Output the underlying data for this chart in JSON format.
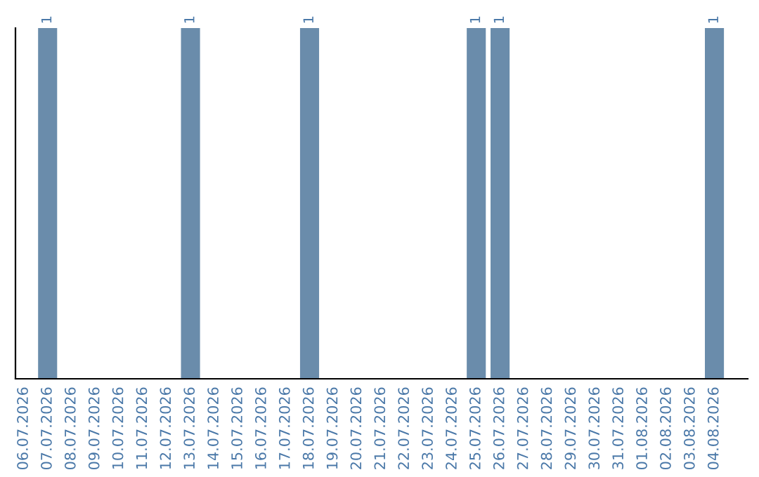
{
  "chart_data": {
    "type": "bar",
    "categories": [
      "06.07.2026",
      "07.07.2026",
      "08.07.2026",
      "09.07.2026",
      "10.07.2026",
      "11.07.2026",
      "12.07.2026",
      "13.07.2026",
      "14.07.2026",
      "15.07.2026",
      "16.07.2026",
      "17.07.2026",
      "18.07.2026",
      "19.07.2026",
      "20.07.2026",
      "21.07.2026",
      "22.07.2026",
      "23.07.2026",
      "24.07.2026",
      "25.07.2026",
      "26.07.2026",
      "27.07.2026",
      "28.07.2026",
      "29.07.2026",
      "30.07.2026",
      "31.07.2026",
      "01.08.2026",
      "02.08.2026",
      "03.08.2026",
      "04.08.2026"
    ],
    "values": [
      0,
      1,
      0,
      0,
      0,
      0,
      0,
      1,
      0,
      0,
      0,
      0,
      1,
      0,
      0,
      0,
      0,
      0,
      0,
      1,
      1,
      0,
      0,
      0,
      0,
      0,
      0,
      0,
      0,
      1
    ],
    "value_labels": [
      null,
      "1",
      null,
      null,
      null,
      null,
      null,
      "1",
      null,
      null,
      null,
      null,
      "1",
      null,
      null,
      null,
      null,
      null,
      null,
      "1",
      "1",
      null,
      null,
      null,
      null,
      null,
      null,
      null,
      null,
      "1"
    ],
    "color": "#6a8cab",
    "tick_labels": "x",
    "grid": false
  }
}
